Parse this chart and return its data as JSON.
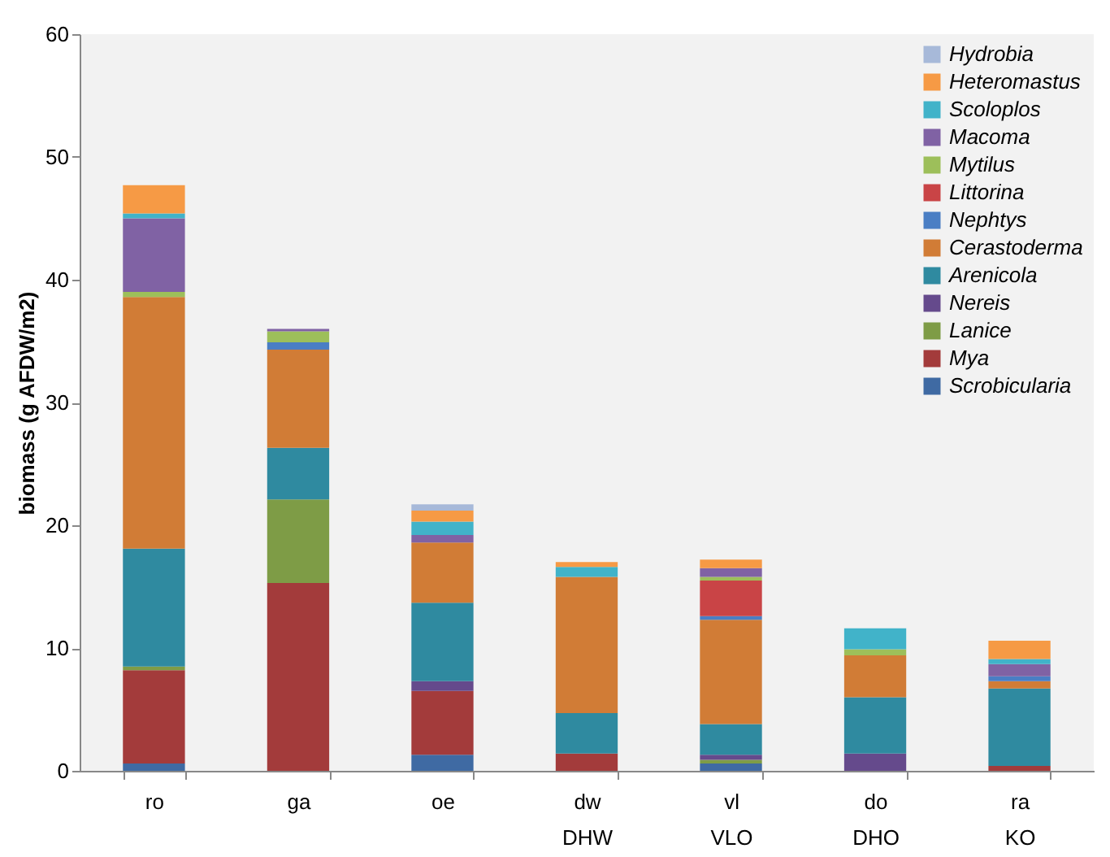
{
  "chart_data": {
    "type": "bar",
    "stacked": true,
    "ylabel": "biomass (g AFDW/m2)",
    "categories": [
      "ro",
      "ga",
      "oe",
      "dw\nDHW",
      "vl\nVLO",
      "do\nDHO",
      "ra\nKO"
    ],
    "ylim": [
      0,
      60
    ],
    "yticks": [
      0,
      10,
      20,
      30,
      40,
      50,
      60
    ],
    "grid": false,
    "legend": "top right",
    "series": [
      {
        "name": "Scrobicularia",
        "color": "#3f6aa3",
        "values": [
          0.6,
          null,
          1.3,
          null,
          0.6,
          null,
          null
        ]
      },
      {
        "name": "Mya",
        "color": "#a33b3b",
        "values": [
          7.6,
          15.3,
          5.2,
          1.4,
          null,
          null,
          0.4
        ]
      },
      {
        "name": "Lanice",
        "color": "#7e9c46",
        "values": [
          0.3,
          6.8,
          null,
          null,
          0.3,
          null,
          null
        ]
      },
      {
        "name": "Nereis",
        "color": "#654a8c",
        "values": [
          null,
          null,
          0.8,
          null,
          0.4,
          1.4,
          null
        ]
      },
      {
        "name": "Arenicola",
        "color": "#2f8aa0",
        "values": [
          9.6,
          4.2,
          6.4,
          3.3,
          2.5,
          4.6,
          6.3
        ]
      },
      {
        "name": "Cerastoderma",
        "color": "#d17c36",
        "values": [
          20.5,
          8.0,
          4.9,
          11.1,
          8.5,
          3.4,
          0.6
        ]
      },
      {
        "name": "Nephtys",
        "color": "#4a7ec4",
        "values": [
          null,
          0.6,
          null,
          null,
          0.3,
          null,
          0.4
        ]
      },
      {
        "name": "Littorina",
        "color": "#c94446",
        "values": [
          null,
          null,
          null,
          null,
          2.9,
          null,
          null
        ]
      },
      {
        "name": "Mytilus",
        "color": "#9dbf5a",
        "values": [
          0.4,
          0.9,
          null,
          null,
          0.3,
          0.5,
          null
        ]
      },
      {
        "name": "Macoma",
        "color": "#8062a4",
        "values": [
          6.0,
          0.2,
          0.6,
          null,
          0.7,
          null,
          1.0
        ]
      },
      {
        "name": "Scoloplos",
        "color": "#41b3c9",
        "values": [
          0.4,
          null,
          1.1,
          0.8,
          null,
          1.7,
          0.4
        ]
      },
      {
        "name": "Heteromastus",
        "color": "#f69a45",
        "values": [
          2.3,
          null,
          0.9,
          0.4,
          0.7,
          null,
          1.5
        ]
      },
      {
        "name": "Hydrobia",
        "color": "#a7b9d9",
        "values": [
          null,
          null,
          0.5,
          null,
          null,
          null,
          null
        ]
      }
    ]
  }
}
